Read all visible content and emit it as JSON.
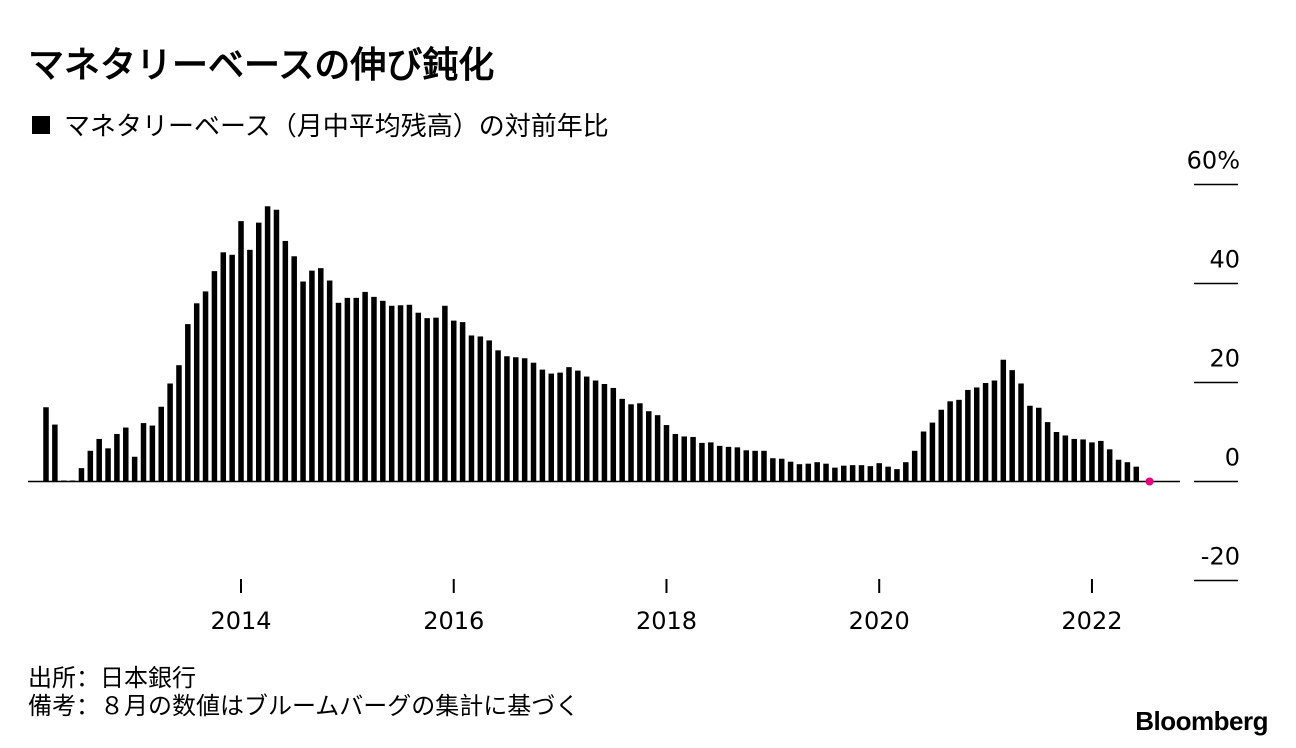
{
  "header": {
    "title": "マネタリーベースの伸び鈍化",
    "legend_label": "マネタリーベース（月中平均残高）の対前年比",
    "legend_color": "#000000"
  },
  "footer": {
    "source": "出所：日本銀行",
    "note": "備考：８月の数値はブルームバーグの集計に基づく",
    "brand": "Bloomberg"
  },
  "chart_data": {
    "type": "bar",
    "series": [
      {
        "name": "マネタリーベース（月中平均残高）の対前年比",
        "color": "#000000",
        "x_start": "2012-03",
        "frequency": "monthly",
        "values": [
          15,
          11.5,
          0.2,
          0.2,
          2.7,
          6.2,
          8.6,
          6.7,
          9.6,
          10.9,
          5,
          11.8,
          11.3,
          15.1,
          19.8,
          23.5,
          31.8,
          36,
          38.4,
          42.5,
          46.3,
          45.8,
          52.6,
          46.8,
          52.3,
          55.6,
          54.9,
          48.6,
          45.5,
          40.4,
          42.6,
          43.1,
          40.6,
          36.1,
          37.1,
          37.1,
          38.3,
          37.3,
          36.5,
          35.5,
          35.6,
          35.7,
          34.1,
          33,
          33.1,
          35.5,
          32.5,
          32.2,
          29.5,
          29.3,
          28.5,
          26.5,
          25.3,
          25.1,
          24.9,
          24,
          22.6,
          21.8,
          22,
          23.1,
          22.4,
          21.2,
          20.4,
          19.7,
          18.9,
          16.7,
          15.6,
          15.8,
          14.2,
          13.4,
          11.4,
          9.6,
          9.1,
          9,
          7.8,
          7.9,
          7.2,
          7,
          6.9,
          6.3,
          6.2,
          6.2,
          4.7,
          4.6,
          4,
          3.5,
          3.6,
          3.9,
          3.6,
          2.8,
          3.2,
          3.3,
          3.3,
          3.1,
          3.7,
          3,
          2.5,
          3.9,
          6.2,
          10.1,
          11.9,
          14.5,
          16.2,
          16.5,
          18.5,
          19,
          19.9,
          20.4,
          24.6,
          22.5,
          19.8,
          15.3,
          14.9,
          12,
          10,
          9.3,
          8.6,
          8.5,
          7.9,
          8.2,
          6.5,
          4.4,
          3.9,
          3,
          0.1
        ]
      }
    ],
    "highlight": {
      "value": 0,
      "color": "#e6007e"
    },
    "xticks": [
      "2014",
      "2016",
      "2018",
      "2020",
      "2022"
    ],
    "xtick_dates": [
      "2014-01",
      "2016-01",
      "2018-01",
      "2020-01",
      "2022-01"
    ],
    "yticks": [
      "60%",
      "40",
      "20",
      "0",
      "-20"
    ],
    "ytick_values": [
      60,
      40,
      20,
      0,
      -20
    ],
    "ylim": [
      -20,
      60
    ],
    "y_axis_position": "right",
    "title": "マネタリーベースの伸び鈍化",
    "xlabel": "",
    "ylabel": ""
  }
}
